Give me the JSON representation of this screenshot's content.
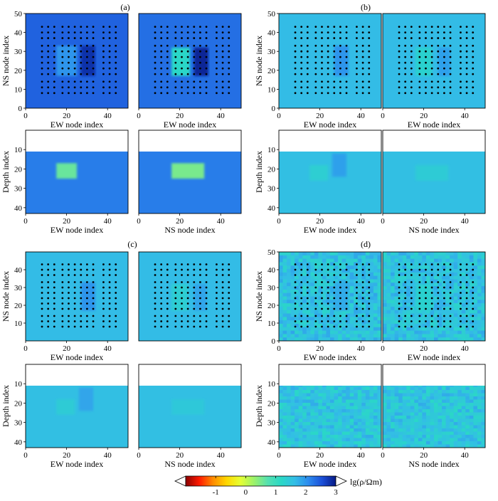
{
  "figure": {
    "panel_labels": [
      "(a)",
      "(b)",
      "(c)",
      "(d)"
    ],
    "colorbar": {
      "label": "lg(ρ/Ωm)",
      "range": [
        -2,
        3
      ],
      "ticks": [
        -1,
        0,
        1,
        2,
        3
      ],
      "tick_labels": [
        "-1",
        "0",
        "1",
        "2",
        "3"
      ],
      "colormap": [
        "#8b0000",
        "#ff1a00",
        "#ff8c00",
        "#ffd700",
        "#e6ff33",
        "#9cf26a",
        "#55e0b0",
        "#2ad8c6",
        "#33bde6",
        "#2c8bee",
        "#1b4fd8",
        "#061a85"
      ]
    },
    "axes": {
      "ns_node_index": "NS node index",
      "ew_node_index": "EW node index",
      "depth_index": "Depth index"
    }
  },
  "chart_data": [
    {
      "type": "heatmap",
      "panel": "(a)",
      "subplots": [
        {
          "view": "plan",
          "xlabel": "EW node index",
          "ylabel": "NS node index",
          "xlim": [
            0,
            50
          ],
          "ylim": [
            0,
            50
          ],
          "xticks": [
            0,
            20,
            40
          ],
          "yticks": [
            0,
            10,
            20,
            30,
            40,
            50
          ],
          "background_value": 2.4,
          "anomalies": [
            {
              "name": "conductor",
              "x": [
                15,
                25
              ],
              "y": [
                17,
                33
              ],
              "value": 2.0
            },
            {
              "name": "resistor",
              "x": [
                27,
                34
              ],
              "y": [
                17,
                33
              ],
              "value": 2.8
            }
          ]
        },
        {
          "view": "plan",
          "xlabel": "EW node index",
          "ylabel": "",
          "xlim": [
            0,
            50
          ],
          "ylim": [
            0,
            50
          ],
          "xticks": [
            0,
            20,
            40
          ],
          "yticks": [],
          "background_value": 2.3,
          "anomalies": [
            {
              "name": "conductor",
              "x": [
                16,
                25
              ],
              "y": [
                17,
                32
              ],
              "value": 1.2
            },
            {
              "name": "resistor",
              "x": [
                27,
                34
              ],
              "y": [
                17,
                32
              ],
              "value": 2.9
            }
          ]
        },
        {
          "view": "section",
          "xlabel": "EW node index",
          "ylabel": "Depth index",
          "xlim": [
            0,
            50
          ],
          "ylim": [
            43,
            0
          ],
          "xticks": [
            0,
            20,
            40
          ],
          "yticks": [
            10,
            20,
            30,
            40
          ],
          "air_depth": 11,
          "background_value": 2.2,
          "anomalies": [
            {
              "name": "conductor",
              "x": [
                15,
                25
              ],
              "depth": [
                17,
                25
              ],
              "value": 0.6
            }
          ]
        },
        {
          "view": "section",
          "xlabel": "NS node index",
          "ylabel": "",
          "xlim": [
            0,
            50
          ],
          "ylim": [
            43,
            0
          ],
          "xticks": [
            0,
            20,
            40
          ],
          "yticks": [],
          "air_depth": 11,
          "background_value": 2.2,
          "anomalies": [
            {
              "name": "conductor",
              "x": [
                16,
                32
              ],
              "depth": [
                17,
                25
              ],
              "value": 0.5
            }
          ]
        }
      ]
    },
    {
      "type": "heatmap",
      "panel": "(b)",
      "subplots": [
        {
          "view": "plan",
          "xlabel": "EW node index",
          "ylabel": "NS node index",
          "xlim": [
            0,
            50
          ],
          "ylim": [
            0,
            50
          ],
          "xticks": [
            0,
            20,
            40
          ],
          "yticks": [
            0,
            10,
            20,
            30,
            40,
            50
          ],
          "background_value": 1.65,
          "anomalies": [
            {
              "name": "resistor",
              "x": [
                27,
                34
              ],
              "y": [
                17,
                33
              ],
              "value": 2.0
            }
          ]
        },
        {
          "view": "plan",
          "xlabel": "EW node index",
          "ylabel": "",
          "xlim": [
            0,
            50
          ],
          "ylim": [
            0,
            50
          ],
          "xticks": [
            0,
            20,
            40
          ],
          "yticks": [],
          "background_value": 1.65,
          "anomalies": [
            {
              "name": "conductor",
              "x": [
                16,
                24
              ],
              "y": [
                17,
                32
              ],
              "value": 1.3
            },
            {
              "name": "resistor",
              "x": [
                27,
                33
              ],
              "y": [
                17,
                32
              ],
              "value": 1.9
            }
          ]
        },
        {
          "view": "section",
          "xlabel": "EW node index",
          "ylabel": "Depth index",
          "xlim": [
            0,
            50
          ],
          "ylim": [
            43,
            0
          ],
          "xticks": [
            0,
            20,
            40
          ],
          "yticks": [
            10,
            20,
            30,
            40
          ],
          "air_depth": 11,
          "background_value": 1.6,
          "anomalies": [
            {
              "name": "conductor",
              "x": [
                15,
                24
              ],
              "depth": [
                18,
                26
              ],
              "value": 1.35
            },
            {
              "name": "resistor",
              "x": [
                26,
                33
              ],
              "depth": [
                12,
                24
              ],
              "value": 1.9
            }
          ]
        },
        {
          "view": "section",
          "xlabel": "NS node index",
          "ylabel": "",
          "xlim": [
            0,
            50
          ],
          "ylim": [
            43,
            0
          ],
          "xticks": [
            0,
            20,
            40
          ],
          "yticks": [],
          "air_depth": 11,
          "background_value": 1.6,
          "anomalies": [
            {
              "name": "conductor",
              "x": [
                16,
                32
              ],
              "depth": [
                18,
                26
              ],
              "value": 1.4
            }
          ]
        }
      ]
    },
    {
      "type": "heatmap",
      "panel": "(c)",
      "subplots": [
        {
          "view": "plan",
          "xlabel": "EW node index",
          "ylabel": "NS node index",
          "xlim": [
            0,
            50
          ],
          "ylim": [
            0,
            50
          ],
          "xticks": [
            0,
            20,
            40
          ],
          "yticks": [
            10,
            20,
            30,
            40
          ],
          "background_value": 1.65,
          "anomalies": [
            {
              "name": "resistor",
              "x": [
                27,
                34
              ],
              "y": [
                17,
                33
              ],
              "value": 2.0
            }
          ]
        },
        {
          "view": "plan",
          "xlabel": "",
          "ylabel": "",
          "xlim": [
            0,
            50
          ],
          "ylim": [
            0,
            50
          ],
          "xticks": [],
          "yticks": [],
          "background_value": 1.65,
          "anomalies": [
            {
              "name": "conductor",
              "x": [
                16,
                24
              ],
              "y": [
                17,
                32
              ],
              "value": 1.35
            },
            {
              "name": "resistor",
              "x": [
                27,
                33
              ],
              "y": [
                17,
                32
              ],
              "value": 1.85
            }
          ]
        },
        {
          "view": "section",
          "xlabel": "EW node index",
          "ylabel": "Depth index",
          "xlim": [
            0,
            50
          ],
          "ylim": [
            43,
            0
          ],
          "xticks": [
            0,
            20,
            40
          ],
          "yticks": [
            10,
            20,
            30,
            40
          ],
          "air_depth": 11,
          "background_value": 1.6,
          "anomalies": [
            {
              "name": "conductor",
              "x": [
                15,
                24
              ],
              "depth": [
                18,
                26
              ],
              "value": 1.4
            },
            {
              "name": "resistor",
              "x": [
                26,
                33
              ],
              "depth": [
                12,
                24
              ],
              "value": 1.85
            }
          ]
        },
        {
          "view": "section",
          "xlabel": "NS node index",
          "ylabel": "",
          "xlim": [
            0,
            50
          ],
          "ylim": [
            43,
            0
          ],
          "xticks": [
            0,
            20,
            40
          ],
          "yticks": [],
          "air_depth": 11,
          "background_value": 1.6,
          "anomalies": [
            {
              "name": "conductor",
              "x": [
                16,
                32
              ],
              "depth": [
                18,
                26
              ],
              "value": 1.45
            }
          ]
        }
      ]
    },
    {
      "type": "heatmap",
      "panel": "(d)",
      "subplots": [
        {
          "view": "plan",
          "xlabel": "EW node index",
          "ylabel": "NS node index",
          "xlim": [
            0,
            50
          ],
          "ylim": [
            0,
            50
          ],
          "xticks": [
            0,
            20,
            40
          ],
          "yticks": [
            0,
            10,
            20,
            30,
            40,
            50
          ],
          "background_value": 1.55,
          "noise": 0.3,
          "anomalies": [
            {
              "name": "resistor",
              "x": [
                27,
                34
              ],
              "y": [
                17,
                33
              ],
              "value": 1.8
            }
          ]
        },
        {
          "view": "plan",
          "xlabel": "EW node index",
          "ylabel": "",
          "xlim": [
            0,
            50
          ],
          "ylim": [
            0,
            50
          ],
          "xticks": [
            0,
            20,
            40
          ],
          "yticks": [],
          "background_value": 1.55,
          "noise": 0.3,
          "anomalies": [
            {
              "name": "conductor",
              "x": [
                16,
                24
              ],
              "y": [
                17,
                32
              ],
              "value": 1.3
            }
          ]
        },
        {
          "view": "section",
          "xlabel": "EW node index",
          "ylabel": "Depth index",
          "xlim": [
            0,
            50
          ],
          "ylim": [
            43,
            0
          ],
          "xticks": [
            0,
            20,
            40
          ],
          "yticks": [
            10,
            20,
            30,
            40
          ],
          "air_depth": 11,
          "background_value": 1.5,
          "noise": 0.3,
          "anomalies": []
        },
        {
          "view": "section",
          "xlabel": "NS node index",
          "ylabel": "",
          "xlim": [
            0,
            50
          ],
          "ylim": [
            43,
            0
          ],
          "xticks": [
            0,
            20,
            40
          ],
          "yticks": [],
          "air_depth": 11,
          "background_value": 1.5,
          "noise": 0.3,
          "anomalies": []
        }
      ]
    }
  ],
  "stations": {
    "x": [
      8,
      11,
      14,
      18,
      21,
      24,
      27,
      30,
      33,
      38,
      41,
      44
    ],
    "y": [
      8,
      11,
      14,
      18,
      21,
      24,
      27,
      30,
      33,
      37,
      40,
      43
    ],
    "dot_color": "#000000"
  }
}
